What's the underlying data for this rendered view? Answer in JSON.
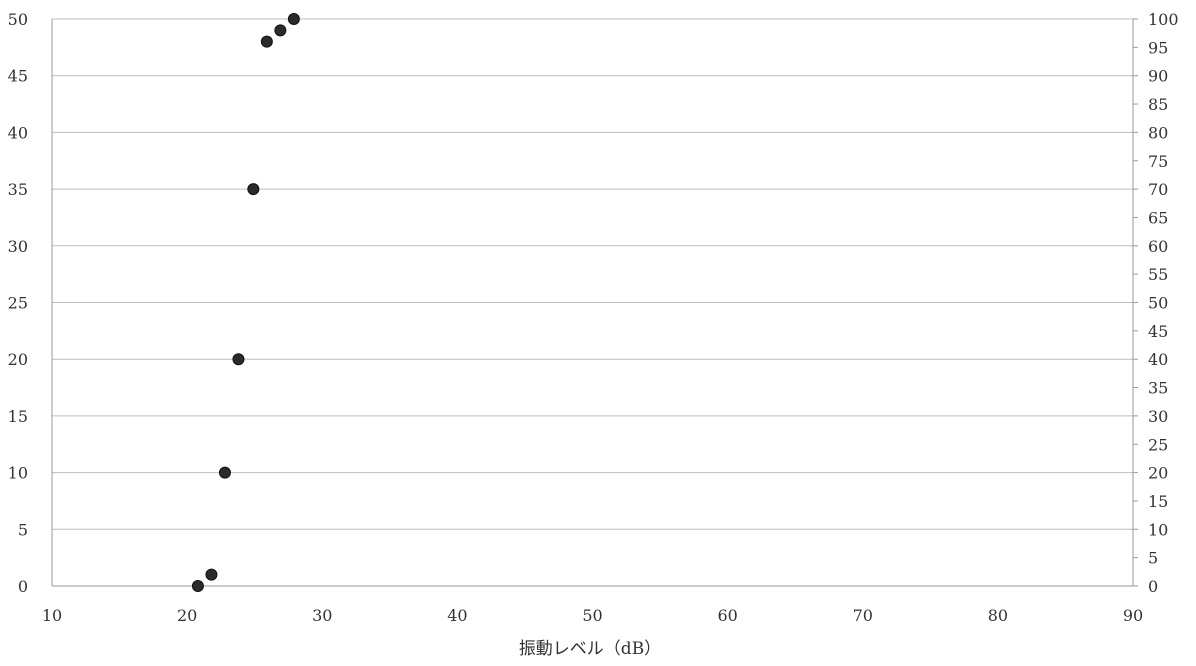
{
  "chart_data": {
    "type": "scatter",
    "title": "",
    "xlabel": "振動レベル（dB）",
    "ylabel": "",
    "xlim": [
      10,
      90
    ],
    "ylim": [
      0,
      50
    ],
    "y2lim": [
      0,
      100
    ],
    "x_ticks": [
      10,
      20,
      30,
      40,
      50,
      60,
      70,
      80,
      90
    ],
    "y_ticks": [
      0,
      5,
      10,
      15,
      20,
      25,
      30,
      35,
      40,
      45,
      50
    ],
    "y2_ticks": [
      0,
      5,
      10,
      15,
      20,
      25,
      30,
      35,
      40,
      45,
      50,
      55,
      60,
      65,
      70,
      75,
      80,
      85,
      90,
      95,
      100
    ],
    "grid": "horizontal",
    "legend": "none",
    "series": [
      {
        "points": [
          {
            "x": 20.8,
            "y": 0
          },
          {
            "x": 21.8,
            "y": 1
          },
          {
            "x": 22.8,
            "y": 10
          },
          {
            "x": 23.8,
            "y": 20
          },
          {
            "x": 24.9,
            "y": 35
          },
          {
            "x": 25.9,
            "y": 48
          },
          {
            "x": 26.9,
            "y": 49
          },
          {
            "x": 27.9,
            "y": 50
          }
        ],
        "color": "#2b2b2b"
      }
    ],
    "colors": {
      "grid": "#bdbdbd",
      "axis": "#9a9a9a",
      "marker": "#2b2b2b",
      "marker_edge": "#111111"
    }
  }
}
